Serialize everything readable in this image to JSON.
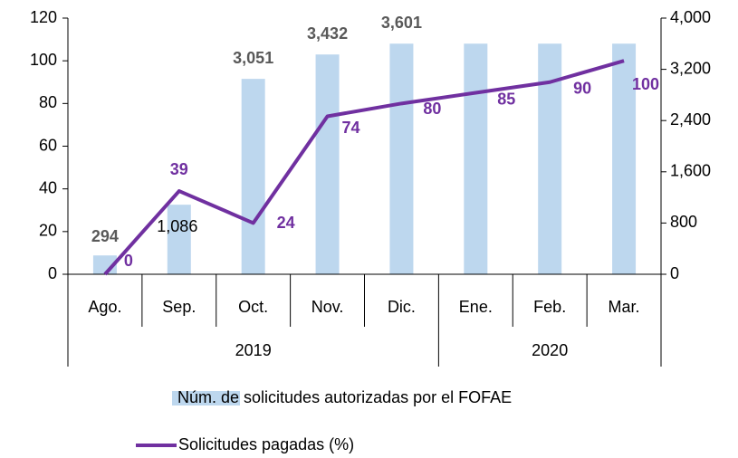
{
  "chart_data": {
    "type": "bar_line",
    "categories": [
      "Ago.",
      "Sep.",
      "Oct.",
      "Nov.",
      "Dic.",
      "Ene.",
      "Feb.",
      "Mar."
    ],
    "groups": [
      {
        "name": "2019",
        "size": 5
      },
      {
        "name": "2020",
        "size": 3
      }
    ],
    "series": [
      {
        "name": "Núm. de solicitudes autorizadas por el FOFAE",
        "type": "bar",
        "axis": "y2",
        "color": "#bdd7ee",
        "values": [
          294,
          1086,
          3051,
          3432,
          3601,
          3601,
          3601,
          3601
        ],
        "value_labels": [
          "294",
          "1,086",
          "3,051",
          "3,432",
          "3,601",
          null,
          null,
          null
        ]
      },
      {
        "name": "Solicitudes pagadas (%)",
        "type": "line",
        "axis": "y",
        "color": "#7030a0",
        "values": [
          0,
          39,
          24,
          74,
          80,
          85,
          90,
          100
        ]
      }
    ],
    "ylim": [
      0,
      120
    ],
    "yticks": [
      0,
      20,
      40,
      60,
      80,
      100,
      120
    ],
    "y2lim": [
      0,
      4000
    ],
    "y2ticks": [
      0,
      {
        "value": 800,
        "label": "800"
      },
      {
        "value": 1600,
        "label": "1,600"
      },
      {
        "value": 2400,
        "label": "2,400"
      },
      {
        "value": 3200,
        "label": "3,200"
      },
      {
        "value": 4000,
        "label": "4,000"
      }
    ],
    "legend": "bottom"
  }
}
